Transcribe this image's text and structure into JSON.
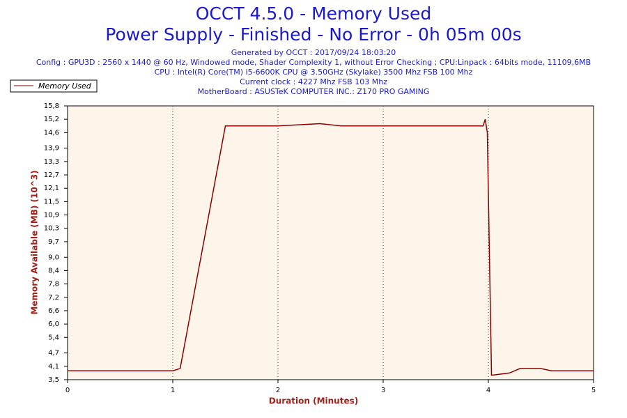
{
  "chart_data": {
    "type": "line",
    "title": "OCCT 4.5.0 - Memory Used",
    "subtitle": "Power Supply - Finished - No Error - 0h 05m 00s",
    "info": [
      "Generated by OCCT : 2017/09/24 18:03:20",
      "Config : GPU3D : 2560 x 1440 @ 60 Hz, Windowed mode, Shader Complexity 1, without Error Checking ; CPU:Linpack : 64bits mode, 11109,6MB",
      "CPU : Intel(R) Core(TM) i5-6600K CPU @ 3.50GHz (Skylake) 3500 Mhz FSB 100 Mhz",
      "Current clock : 4227 Mhz FSB 103 Mhz",
      "MotherBoard : ASUSTeK COMPUTER INC.: Z170 PRO GAMING"
    ],
    "xlabel": "Duration (Minutes)",
    "ylabel": "Memory Available (MB) (10^3)",
    "x": [
      0,
      0.5,
      1.0,
      1.07,
      1.5,
      2.0,
      2.4,
      2.6,
      3.0,
      3.5,
      3.95,
      3.97,
      3.99,
      4.03,
      4.2,
      4.3,
      4.5,
      4.6,
      5.0
    ],
    "series": [
      {
        "name": "Memory Used",
        "color": "#8b0000",
        "values": [
          3.9,
          3.9,
          3.9,
          4.0,
          14.9,
          14.9,
          15.0,
          14.9,
          14.9,
          14.9,
          14.9,
          15.2,
          14.6,
          3.7,
          3.8,
          4.0,
          4.0,
          3.9,
          3.9
        ]
      }
    ],
    "xlim": [
      0,
      5
    ],
    "xticks": [
      0,
      1,
      2,
      3,
      4,
      5
    ],
    "ylim": [
      3.5,
      15.8
    ],
    "yticks": [
      {
        "value": 3.5,
        "label": "3,5"
      },
      {
        "value": 4.1,
        "label": "4,1"
      },
      {
        "value": 4.7,
        "label": "4,7"
      },
      {
        "value": 5.4,
        "label": "5,4"
      },
      {
        "value": 6.0,
        "label": "6,0"
      },
      {
        "value": 6.6,
        "label": "6,6"
      },
      {
        "value": 7.2,
        "label": "7,2"
      },
      {
        "value": 7.8,
        "label": "7,8"
      },
      {
        "value": 8.4,
        "label": "8,4"
      },
      {
        "value": 9.0,
        "label": "9,0"
      },
      {
        "value": 9.7,
        "label": "9,7"
      },
      {
        "value": 10.3,
        "label": "10,3"
      },
      {
        "value": 10.9,
        "label": "10,9"
      },
      {
        "value": 11.5,
        "label": "11,5"
      },
      {
        "value": 12.1,
        "label": "12,1"
      },
      {
        "value": 12.7,
        "label": "12,7"
      },
      {
        "value": 13.3,
        "label": "13,3"
      },
      {
        "value": 13.9,
        "label": "13,9"
      },
      {
        "value": 14.6,
        "label": "14,6"
      },
      {
        "value": 15.2,
        "label": "15,2"
      },
      {
        "value": 15.8,
        "label": "15,8"
      }
    ],
    "grid": true
  }
}
